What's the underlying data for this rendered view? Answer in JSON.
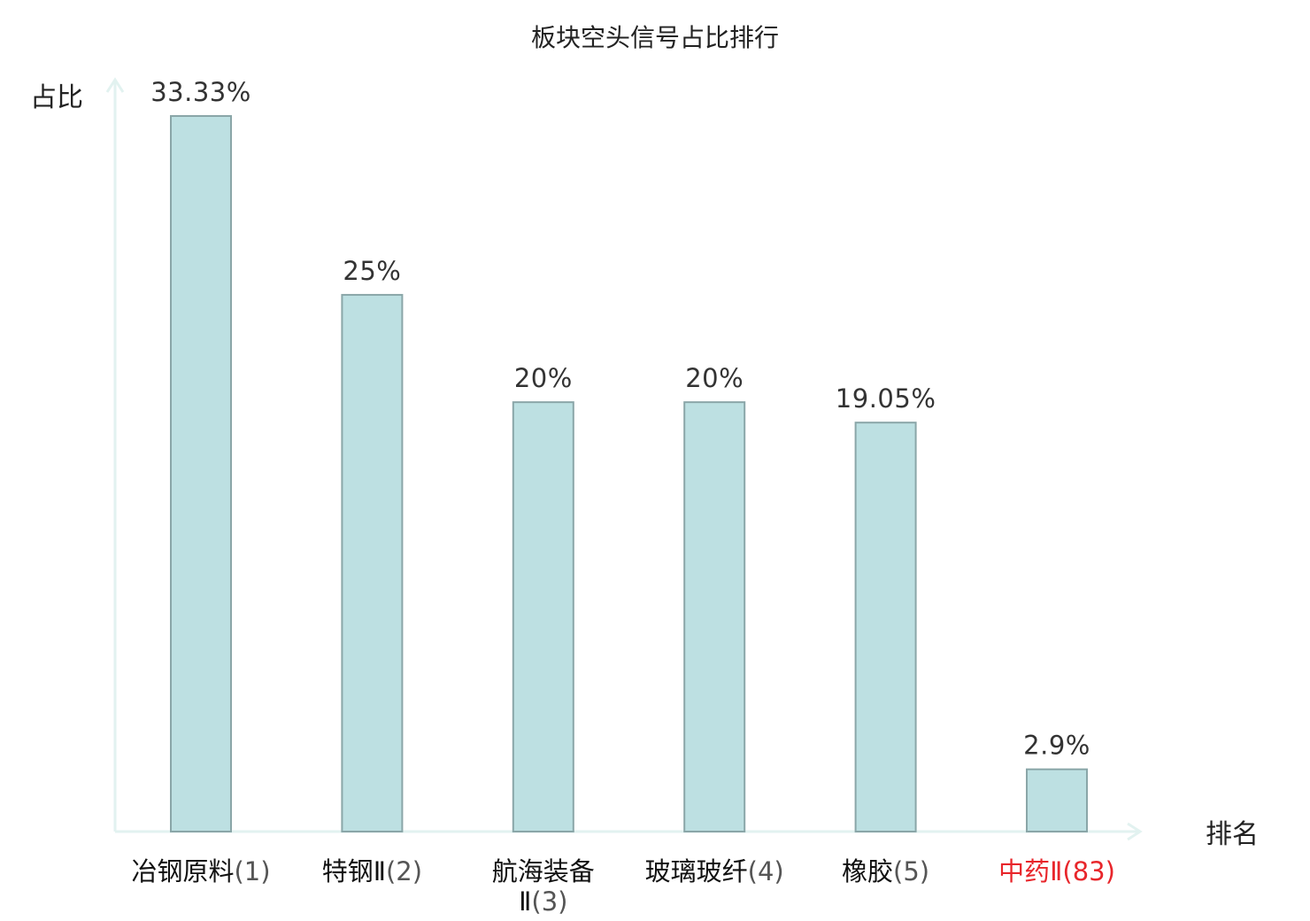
{
  "chart_data": {
    "type": "bar",
    "title": "板块空头信号占比排行",
    "ylabel": "占比",
    "xlabel": "排名",
    "ylim": [
      0,
      35
    ],
    "grid": false,
    "categories": [
      {
        "name": "冶钢原料",
        "rank": "(1)",
        "lines": [
          [
            "冶钢原料",
            "(1)"
          ]
        ],
        "highlight": false
      },
      {
        "name": "特钢Ⅱ",
        "rank": "(2)",
        "lines": [
          [
            "特钢Ⅱ",
            "(2)"
          ]
        ],
        "highlight": false
      },
      {
        "name": "航海装备Ⅱ",
        "rank": "(3)",
        "lines": [
          [
            "航海装备",
            ""
          ],
          [
            "Ⅱ",
            "(3)"
          ]
        ],
        "highlight": false
      },
      {
        "name": "玻璃玻纤",
        "rank": "(4)",
        "lines": [
          [
            "玻璃玻纤",
            "(4)"
          ]
        ],
        "highlight": false
      },
      {
        "name": "橡胶",
        "rank": "(5)",
        "lines": [
          [
            "橡胶",
            "(5)"
          ]
        ],
        "highlight": false
      },
      {
        "name": "中药Ⅱ",
        "rank": "(83)",
        "lines": [
          [
            "中药Ⅱ",
            "(83)"
          ]
        ],
        "highlight": true
      }
    ],
    "values": [
      33.33,
      25,
      20,
      20,
      19.05,
      2.9
    ],
    "value_labels": [
      "33.33%",
      "25%",
      "20%",
      "20%",
      "19.05%",
      "2.9%"
    ],
    "colors": {
      "bar_fill": "#bde0e2",
      "bar_stroke": "#8aa6a8",
      "axis": "#e2f2f0",
      "highlight": "#e8262b"
    }
  }
}
